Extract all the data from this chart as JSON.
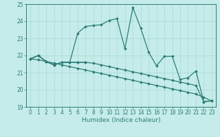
{
  "xlabel": "Humidex (Indice chaleur)",
  "x": [
    0,
    1,
    2,
    3,
    4,
    5,
    6,
    7,
    8,
    9,
    10,
    11,
    12,
    13,
    14,
    15,
    16,
    17,
    18,
    19,
    20,
    21,
    22,
    23
  ],
  "line1": [
    21.8,
    22.0,
    21.65,
    21.45,
    21.6,
    21.6,
    21.6,
    21.6,
    null,
    null,
    null,
    null,
    null,
    null,
    null,
    null,
    null,
    null,
    null,
    null,
    null,
    null,
    null,
    null
  ],
  "line2": [
    21.8,
    22.0,
    21.65,
    21.45,
    21.6,
    21.6,
    23.3,
    23.7,
    23.75,
    23.8,
    24.05,
    24.15,
    22.4,
    24.8,
    23.6,
    22.2,
    21.4,
    21.95,
    21.95,
    20.6,
    20.7,
    21.1,
    19.3,
    19.35
  ],
  "line3": [
    21.8,
    22.0,
    21.65,
    21.45,
    21.6,
    21.6,
    21.6,
    21.6,
    21.55,
    21.45,
    21.35,
    21.25,
    21.15,
    21.05,
    20.95,
    20.85,
    20.75,
    20.65,
    20.55,
    20.45,
    20.35,
    20.25,
    19.3,
    19.35
  ],
  "line4": [
    21.8,
    21.75,
    21.65,
    21.55,
    21.45,
    21.35,
    21.25,
    21.15,
    21.05,
    20.95,
    20.85,
    20.75,
    20.65,
    20.55,
    20.45,
    20.35,
    20.25,
    20.15,
    20.05,
    19.95,
    19.85,
    19.75,
    19.55,
    19.35
  ],
  "ylim": [
    19,
    25
  ],
  "yticks": [
    19,
    20,
    21,
    22,
    23,
    24,
    25
  ],
  "color": "#2d7d74",
  "bg_color": "#c5ecea",
  "grid_color": "#a8d8d4",
  "marker": "D",
  "markersize": 2.0,
  "linewidth": 0.9
}
